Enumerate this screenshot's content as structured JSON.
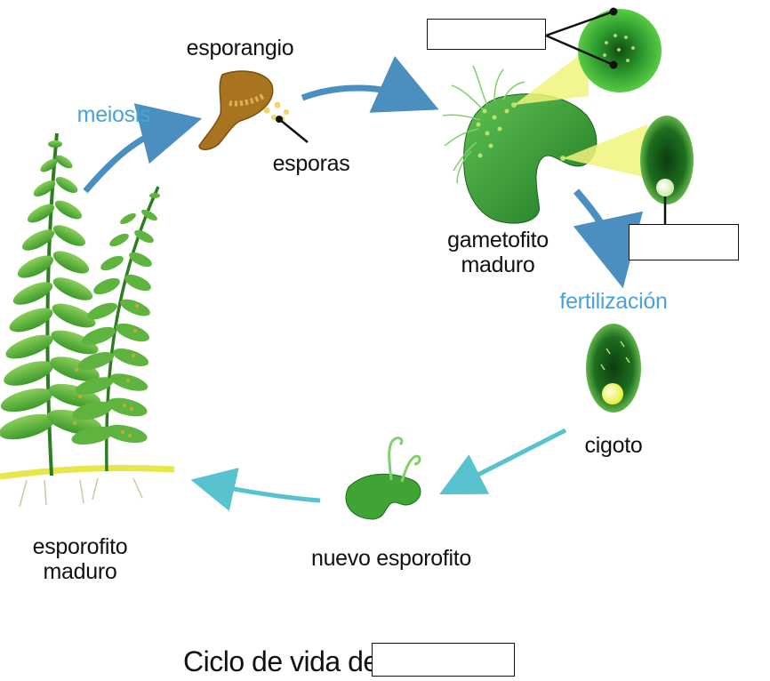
{
  "labels": {
    "esporangio": "esporangio",
    "meiosis": "meiosis",
    "esporas": "esporas",
    "gametofito": "gametofito",
    "maduro_gametofito": "maduro",
    "fertilizacion": "fertilización",
    "cigoto": "cigoto",
    "nuevo_esporofito": "nuevo esporofito",
    "esporofito": "esporofito",
    "maduro_esporofito": "maduro"
  },
  "title": {
    "text": "Ciclo de vida del"
  },
  "blanks": {
    "top_right": "",
    "right": "",
    "title": ""
  },
  "colors": {
    "arrow_blue": "#4a8fbf",
    "label_blue": "#4aa3d6",
    "plant_green": "#3f9e2c",
    "sporangium_brown": "#a9741f",
    "zoom_yellow": "#f1f37a"
  }
}
